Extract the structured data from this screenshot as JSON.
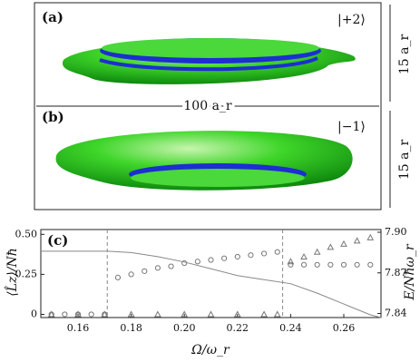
{
  "panels": {
    "a": {
      "label": "(a)",
      "state": "|+2⟩"
    },
    "b": {
      "label": "(b)",
      "state": "|−1⟩"
    },
    "width_label": "100 a_r",
    "height_labels": [
      "15 a_r",
      "15 a_r"
    ]
  },
  "chart_data": {
    "type": "scatter",
    "panel_label": "(c)",
    "xlabel": "Ω/ω_r",
    "ylabel": "⟨L̂z⟩/Nħ",
    "y2label": "E/Nħω_r",
    "xlim": [
      0.146,
      0.274
    ],
    "xticks": [
      0.16,
      0.18,
      {
        "value": 0.2,
        "label": "0.20"
      },
      0.22,
      0.24,
      0.26
    ],
    "ylim": [
      -0.02,
      0.53
    ],
    "yticks": [
      0,
      0.25,
      {
        "value": 0.5,
        "label": "0.50"
      }
    ],
    "y2lim": [
      7.837,
      7.902
    ],
    "y2ticks": [
      7.84,
      7.87,
      {
        "value": 7.9,
        "label": "7.90"
      }
    ],
    "vlines": [
      0.171,
      0.237
    ],
    "series": [
      {
        "marker": "circle",
        "color": "#777777",
        "x": [
          0.15,
          0.155,
          0.16,
          0.165,
          0.17,
          0.175,
          0.18,
          0.185,
          0.19,
          0.195,
          0.2,
          0.205,
          0.21,
          0.215,
          0.22,
          0.225,
          0.23,
          0.235,
          0.24,
          0.245,
          0.25,
          0.255,
          0.26,
          0.265,
          0.27
        ],
        "values": [
          0,
          0,
          0,
          0,
          0,
          0.23,
          0.25,
          0.27,
          0.29,
          0.3,
          0.32,
          0.33,
          0.34,
          0.35,
          0.36,
          0.37,
          0.38,
          0.39,
          0.31,
          0.31,
          0.31,
          0.31,
          0.31,
          0.31,
          0.31
        ]
      },
      {
        "marker": "triangle",
        "color": "#777777",
        "x": [
          0.15,
          0.16,
          0.17,
          0.18,
          0.19,
          0.2,
          0.21,
          0.22,
          0.23,
          0.235,
          0.24,
          0.245,
          0.25,
          0.255,
          0.26,
          0.265,
          0.27
        ],
        "values": [
          0,
          0,
          0,
          0,
          0,
          0,
          0,
          0,
          0,
          0,
          0.33,
          0.36,
          0.39,
          0.42,
          0.44,
          0.46,
          0.48
        ]
      },
      {
        "marker": "line",
        "color": "#888888",
        "axis": "y2",
        "x": [
          0.146,
          0.171,
          0.18,
          0.19,
          0.2,
          0.21,
          0.22,
          0.23,
          0.24,
          0.25,
          0.26,
          0.27,
          0.274
        ],
        "values": [
          7.886,
          7.886,
          7.885,
          7.882,
          7.878,
          7.873,
          7.868,
          7.865,
          7.862,
          7.855,
          7.847,
          7.839,
          7.837
        ]
      }
    ]
  }
}
